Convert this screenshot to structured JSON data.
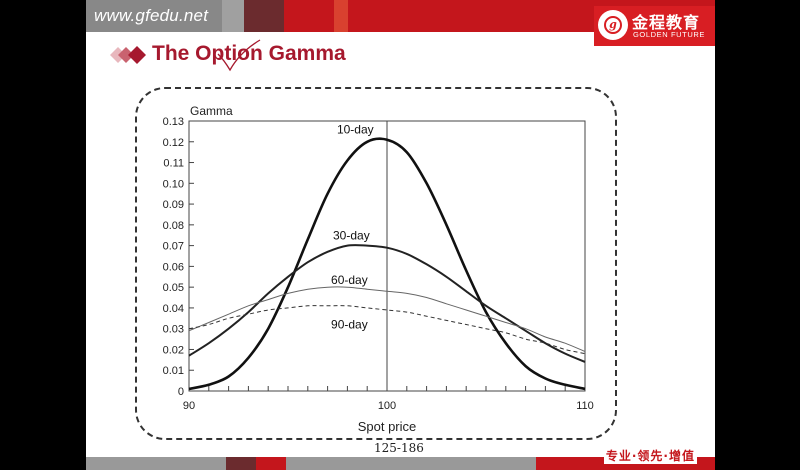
{
  "header": {
    "site_url": "www.gfedu.net",
    "logo_cn": "金程教育",
    "logo_en": "GOLDEN FUTURE",
    "logo_mark": "g",
    "bar_colors": [
      "#888888",
      "#a0a0a0",
      "#6b2b2e",
      "#c4161c",
      "#d9412f",
      "#c4161c"
    ]
  },
  "slide": {
    "title": "The Option Gamma",
    "page_number": "125-186",
    "slogan": "专业·领先·增值"
  },
  "chart_data": {
    "type": "line",
    "ylabel": "Gamma",
    "xlabel": "Spot price",
    "xlim": [
      90,
      110
    ],
    "ylim": [
      0,
      0.13
    ],
    "x_ticks": [
      "90",
      "100",
      "110"
    ],
    "y_ticks": [
      "0",
      "0.01",
      "0.02",
      "0.03",
      "0.04",
      "0.05",
      "0.06",
      "0.07",
      "0.08",
      "0.09",
      "0.10",
      "0.11",
      "0.12",
      "0.13"
    ],
    "vertical_line_x": 100,
    "grid": false,
    "series": [
      {
        "name": "10-day",
        "style": "thick",
        "x": [
          90,
          91,
          92,
          93,
          94,
          95,
          96,
          97,
          98,
          99,
          100,
          101,
          102,
          103,
          104,
          105,
          106,
          107,
          108,
          109,
          110
        ],
        "y": [
          0.001,
          0.003,
          0.007,
          0.016,
          0.03,
          0.05,
          0.073,
          0.095,
          0.111,
          0.12,
          0.121,
          0.115,
          0.1,
          0.08,
          0.058,
          0.038,
          0.023,
          0.012,
          0.006,
          0.003,
          0.001
        ]
      },
      {
        "name": "30-day",
        "style": "medium",
        "x": [
          90,
          91,
          92,
          93,
          94,
          95,
          96,
          97,
          98,
          99,
          100,
          101,
          102,
          103,
          104,
          105,
          106,
          107,
          108,
          109,
          110
        ],
        "y": [
          0.017,
          0.023,
          0.03,
          0.038,
          0.047,
          0.055,
          0.062,
          0.067,
          0.07,
          0.07,
          0.069,
          0.066,
          0.061,
          0.055,
          0.048,
          0.041,
          0.035,
          0.029,
          0.023,
          0.018,
          0.014
        ]
      },
      {
        "name": "60-day",
        "style": "thin",
        "x": [
          90,
          91,
          92,
          93,
          94,
          95,
          96,
          97,
          98,
          99,
          100,
          101,
          102,
          103,
          104,
          105,
          106,
          107,
          108,
          109,
          110
        ],
        "y": [
          0.029,
          0.033,
          0.037,
          0.041,
          0.044,
          0.047,
          0.049,
          0.05,
          0.05,
          0.049,
          0.048,
          0.047,
          0.045,
          0.042,
          0.039,
          0.036,
          0.033,
          0.03,
          0.026,
          0.023,
          0.019
        ]
      },
      {
        "name": "90-day",
        "style": "dashed",
        "x": [
          90,
          91,
          92,
          93,
          94,
          95,
          96,
          97,
          98,
          99,
          100,
          101,
          102,
          103,
          104,
          105,
          106,
          107,
          108,
          109,
          110
        ],
        "y": [
          0.03,
          0.032,
          0.035,
          0.037,
          0.039,
          0.04,
          0.041,
          0.041,
          0.041,
          0.04,
          0.039,
          0.038,
          0.036,
          0.034,
          0.032,
          0.03,
          0.028,
          0.025,
          0.023,
          0.02,
          0.018
        ]
      }
    ]
  }
}
